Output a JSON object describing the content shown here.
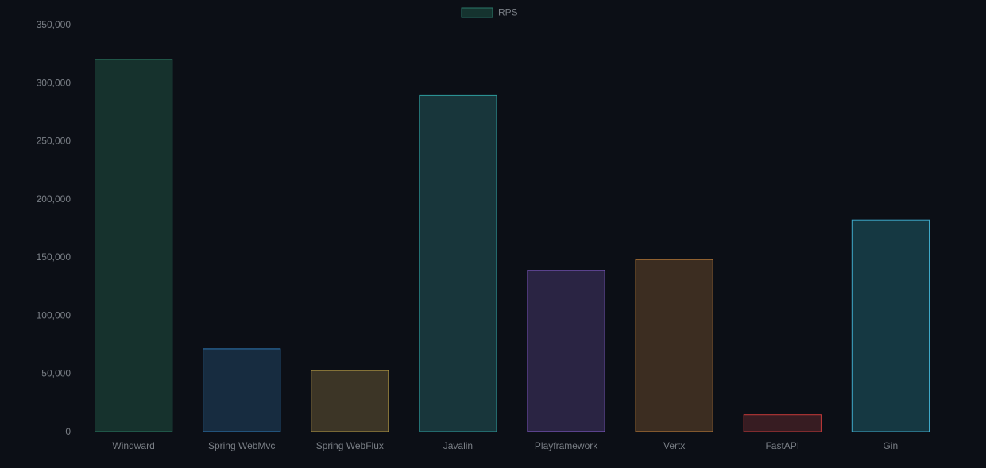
{
  "chart_data": {
    "type": "bar",
    "legend": {
      "label": "RPS",
      "placement": "top-center",
      "swatch_color": "#15332f",
      "swatch_border": "#2a7a6a"
    },
    "categories": [
      "Windward",
      "Spring WebMvc",
      "Spring WebFlux",
      "Javalin",
      "Playframework",
      "Vertx",
      "FastAPI",
      "Gin"
    ],
    "series": [
      {
        "name": "RPS",
        "values": [
          320000,
          71000,
          52500,
          289000,
          138500,
          148000,
          14500,
          182000
        ]
      }
    ],
    "ylim": [
      0,
      350000
    ],
    "yticks": [
      0,
      50000,
      100000,
      150000,
      200000,
      250000,
      300000,
      350000
    ],
    "ytick_labels": [
      "0",
      "50,000",
      "100,000",
      "150,000",
      "200,000",
      "250,000",
      "300,000",
      "350,000"
    ],
    "grid": false,
    "bar_colors": [
      {
        "fill": "#16322d",
        "stroke": "#2a7a63"
      },
      {
        "fill": "#172c40",
        "stroke": "#2d78b4"
      },
      {
        "fill": "#3c3526",
        "stroke": "#b59a45"
      },
      {
        "fill": "#18363b",
        "stroke": "#2e9c9c"
      },
      {
        "fill": "#2a2443",
        "stroke": "#8b5fd6"
      },
      {
        "fill": "#3c2d21",
        "stroke": "#c8843a"
      },
      {
        "fill": "#371c22",
        "stroke": "#c73a3a"
      },
      {
        "fill": "#153842",
        "stroke": "#3ea8c8"
      }
    ],
    "background": "#0c0f16",
    "text_color": "#7a7f86"
  }
}
